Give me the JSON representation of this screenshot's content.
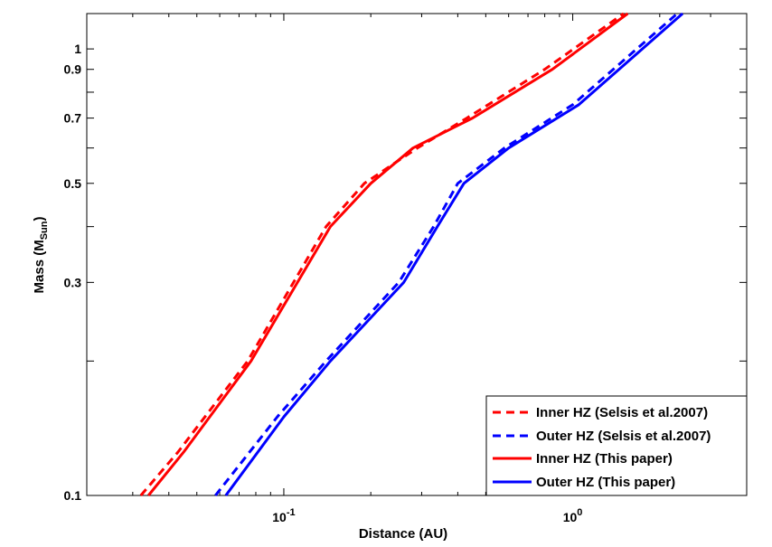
{
  "chart_data": {
    "type": "line",
    "xlabel": "Distance (AU)",
    "ylabel": "Mass (M",
    "ylabel_sub": "Sun",
    "ylabel_close": ")",
    "x_scale": "log",
    "y_scale": "log",
    "xlim": [
      0.0208,
      4.0
    ],
    "ylim": [
      0.1,
      1.2
    ],
    "x_ticks": [
      {
        "value": 0.1,
        "base": "10",
        "exp": "-1"
      },
      {
        "value": 1.0,
        "base": "10",
        "exp": "0"
      }
    ],
    "y_ticks": [
      {
        "value": 0.1,
        "label": "0.1"
      },
      {
        "value": 0.3,
        "label": "0.3"
      },
      {
        "value": 0.5,
        "label": "0.5"
      },
      {
        "value": 0.7,
        "label": "0.7"
      },
      {
        "value": 0.9,
        "label": "0.9"
      },
      {
        "value": 1.0,
        "label": "1"
      }
    ],
    "grid": false,
    "legend_position": "bottom-right",
    "series": [
      {
        "name": "Inner HZ (Selsis et al.2007)",
        "color": "#ff0000",
        "style": "dashed",
        "points": [
          [
            0.032,
            0.1
          ],
          [
            0.043,
            0.125
          ],
          [
            0.075,
            0.2
          ],
          [
            0.14,
            0.4
          ],
          [
            0.19,
            0.5
          ],
          [
            0.29,
            0.6
          ],
          [
            0.43,
            0.7
          ],
          [
            0.8,
            0.9
          ],
          [
            1.5,
            1.2
          ]
        ]
      },
      {
        "name": "Outer HZ (Selsis et al.2007)",
        "color": "#0000ff",
        "style": "dashed",
        "points": [
          [
            0.058,
            0.1
          ],
          [
            0.095,
            0.15
          ],
          [
            0.14,
            0.2
          ],
          [
            0.25,
            0.3
          ],
          [
            0.33,
            0.4
          ],
          [
            0.4,
            0.5
          ],
          [
            0.58,
            0.6
          ],
          [
            1.0,
            0.75
          ],
          [
            2.3,
            1.2
          ]
        ]
      },
      {
        "name": "Inner HZ (This paper)",
        "color": "#ff0000",
        "style": "solid",
        "points": [
          [
            0.034,
            0.1
          ],
          [
            0.045,
            0.125
          ],
          [
            0.077,
            0.2
          ],
          [
            0.145,
            0.4
          ],
          [
            0.2,
            0.5
          ],
          [
            0.28,
            0.6
          ],
          [
            0.45,
            0.7
          ],
          [
            0.85,
            0.9
          ],
          [
            1.55,
            1.2
          ]
        ]
      },
      {
        "name": "Outer HZ (This paper)",
        "color": "#0000ff",
        "style": "solid",
        "points": [
          [
            0.063,
            0.1
          ],
          [
            0.1,
            0.15
          ],
          [
            0.145,
            0.2
          ],
          [
            0.26,
            0.3
          ],
          [
            0.34,
            0.4
          ],
          [
            0.42,
            0.5
          ],
          [
            0.6,
            0.6
          ],
          [
            1.05,
            0.75
          ],
          [
            2.4,
            1.2
          ]
        ]
      }
    ]
  }
}
